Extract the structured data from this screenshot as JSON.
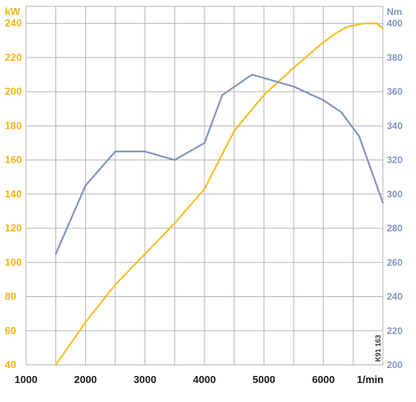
{
  "chart_data": {
    "type": "line",
    "code": "K91 163",
    "x_axis": {
      "unit_label": "1/min",
      "range": [
        1000,
        7000
      ],
      "ticks": [
        1000,
        2000,
        3000,
        4000,
        5000,
        6000
      ],
      "grid_step": 500
    },
    "y_axis_left": {
      "unit_label": "kW",
      "range": [
        40,
        250
      ],
      "ticks": [
        40,
        60,
        80,
        100,
        120,
        140,
        160,
        180,
        200,
        220,
        240
      ],
      "color": "#f2b418"
    },
    "y_axis_right": {
      "unit_label": "Nm",
      "range": [
        200,
        410
      ],
      "ticks": [
        200,
        220,
        240,
        260,
        280,
        300,
        320,
        340,
        360,
        380,
        400
      ],
      "color": "#7f95bf"
    },
    "grid": true,
    "series": [
      {
        "axis": "left",
        "color": "#f5c02a",
        "x": [
          1500,
          2000,
          2500,
          3000,
          3500,
          4000,
          4500,
          5000,
          5500,
          6000,
          6200,
          6400,
          6700,
          6900,
          7000
        ],
        "values": [
          40,
          65,
          87,
          105,
          123,
          143,
          177,
          198,
          214,
          229,
          234,
          238,
          240,
          240,
          237
        ]
      },
      {
        "axis": "right",
        "color": "#7f95bf",
        "x": [
          1500,
          2000,
          2500,
          3000,
          3500,
          4000,
          4300,
          4800,
          5500,
          6000,
          6300,
          6600,
          7000
        ],
        "values": [
          265,
          305,
          325,
          325,
          320,
          330,
          358,
          370,
          363,
          355,
          348,
          334,
          295
        ]
      }
    ]
  }
}
